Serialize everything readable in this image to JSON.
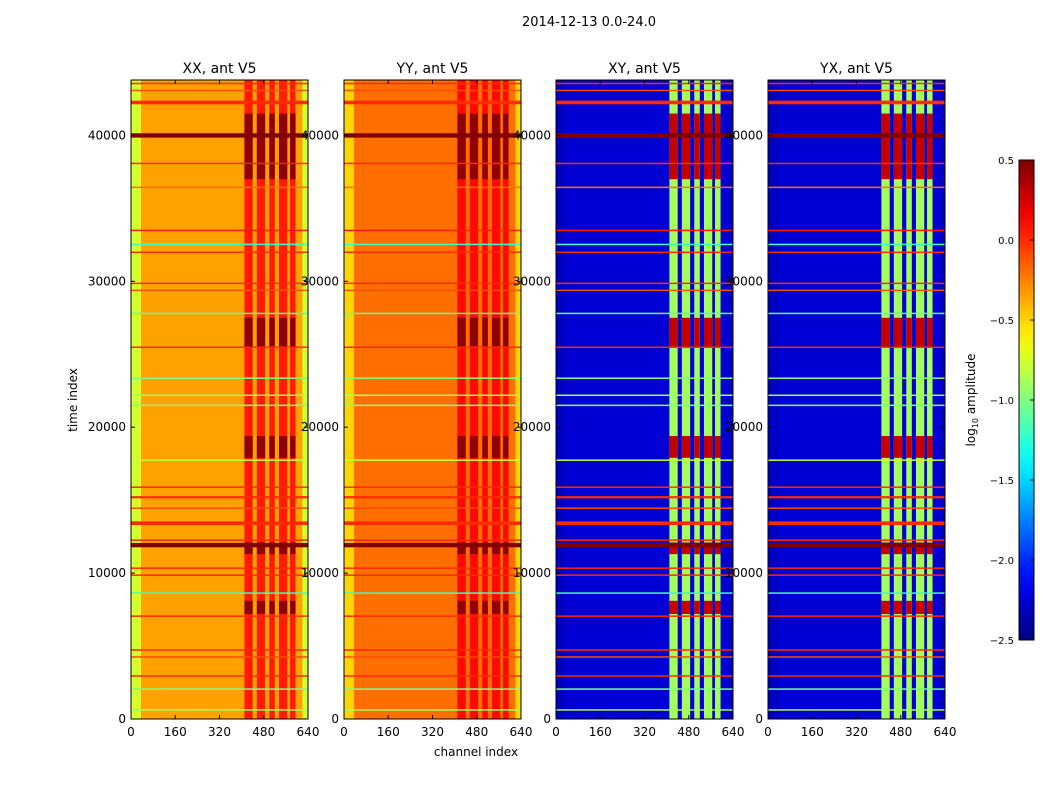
{
  "chart_data": {
    "type": "heatmap",
    "suptitle": "2014-12-13 0.0-24.0",
    "xlabel": "channel index",
    "ylabel": "time index",
    "xlim": [
      0,
      640
    ],
    "ylim": [
      0,
      43800
    ],
    "xticks": [
      "0",
      "160",
      "320",
      "480",
      "640"
    ],
    "yticks": [
      "0",
      "10000",
      "20000",
      "30000",
      "40000"
    ],
    "xtick_values": [
      0,
      160,
      320,
      480,
      640
    ],
    "ytick_values": [
      0,
      10000,
      20000,
      30000,
      40000
    ],
    "colorbar": {
      "label_main": "log",
      "label_sub": "10",
      "label_rest": " amplitude",
      "cmap": "jet",
      "range": [
        -2.5,
        0.5
      ],
      "ticks": [
        "0.5",
        "0.0",
        "−0.5",
        "−1.0",
        "−1.5",
        "−2.0",
        "−2.5"
      ],
      "tick_values": [
        0.5,
        0.0,
        -0.5,
        -1.0,
        -1.5,
        -2.0,
        -2.5
      ]
    },
    "panels": [
      {
        "title": "XX, ant V5",
        "base": -0.35,
        "edge": -0.75,
        "band_level": 0.05,
        "hot_level": 0.45
      },
      {
        "title": "YY, ant V5",
        "base": -0.2,
        "edge": -0.5,
        "band_level": 0.1,
        "hot_level": 0.45
      },
      {
        "title": "XY, ant V5",
        "base": -2.25,
        "edge": -2.3,
        "band_level": -0.9,
        "hot_level": 0.3
      },
      {
        "title": "YX, ant V5",
        "base": -2.25,
        "edge": -2.3,
        "band_level": -0.9,
        "hot_level": 0.3
      }
    ],
    "rfi_channel_bands": [
      [
        410,
        440
      ],
      [
        455,
        485
      ],
      [
        500,
        520
      ],
      [
        535,
        565
      ],
      [
        575,
        595
      ]
    ],
    "hot_time_ranges": [
      [
        7200,
        8100
      ],
      [
        11300,
        12100
      ],
      [
        17900,
        19400
      ],
      [
        25500,
        27500
      ],
      [
        37000,
        41500
      ]
    ],
    "flagged_rows": [
      {
        "time": 43560,
        "level": 0.0
      },
      {
        "time": 43080,
        "level": -0.1
      },
      {
        "time": 42260,
        "level": 0.0,
        "width": 250
      },
      {
        "time": 40000,
        "level": 0.5,
        "width": 300
      },
      {
        "time": 38080,
        "level": 0.0
      },
      {
        "time": 36440,
        "level": -0.2
      },
      {
        "time": 33490,
        "level": 0.05
      },
      {
        "time": 32530,
        "level": -1.2
      },
      {
        "time": 31990,
        "level": 0.0
      },
      {
        "time": 29860,
        "level": 0.0
      },
      {
        "time": 29380,
        "level": -0.1
      },
      {
        "time": 27800,
        "level": -1.1
      },
      {
        "time": 25480,
        "level": 0.0
      },
      {
        "time": 23360,
        "level": -1.0
      },
      {
        "time": 22190,
        "level": -0.9
      },
      {
        "time": 21500,
        "level": -1.0
      },
      {
        "time": 17740,
        "level": -0.8
      },
      {
        "time": 15890,
        "level": 0.0
      },
      {
        "time": 15200,
        "level": 0.0,
        "width": 150
      },
      {
        "time": 14450,
        "level": -0.1
      },
      {
        "time": 13420,
        "level": 0.0,
        "width": 250
      },
      {
        "time": 12260,
        "level": 0.0
      },
      {
        "time": 11920,
        "level": 0.5,
        "width": 300
      },
      {
        "time": 10340,
        "level": 0.0
      },
      {
        "time": 9860,
        "level": 0.0
      },
      {
        "time": 8630,
        "level": -1.2
      },
      {
        "time": 7050,
        "level": 0.0
      },
      {
        "time": 4730,
        "level": 0.0
      },
      {
        "time": 4250,
        "level": -0.1
      },
      {
        "time": 2950,
        "level": 0.0
      },
      {
        "time": 2050,
        "level": -1.0
      },
      {
        "time": 620,
        "level": -0.9
      }
    ]
  }
}
